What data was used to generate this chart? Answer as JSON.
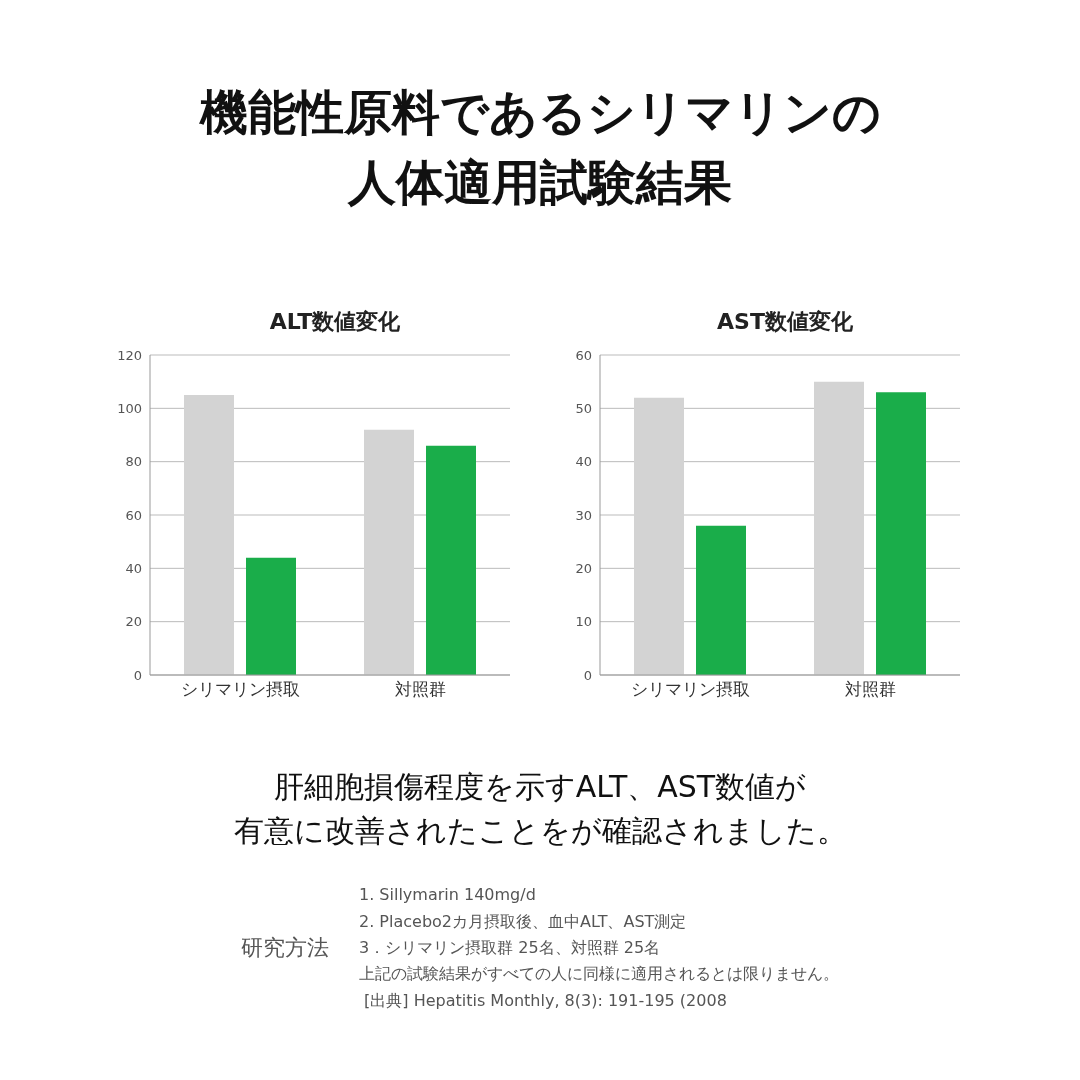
{
  "chart_data": [
    {
      "type": "other",
      "title": "機能性原料であるシリマリンの人体適用試験結果"
    },
    {
      "type": "bar",
      "title": "ALT数値変化",
      "categories": [
        "シリマリン摂取",
        "対照群"
      ],
      "series": [
        {
          "color": "#d3d3d3",
          "values": [
            105,
            92
          ]
        },
        {
          "color": "#1aad4a",
          "values": [
            44,
            86
          ]
        }
      ],
      "ylim": [
        0,
        120
      ],
      "yticks": [
        0,
        20,
        40,
        60,
        80,
        100,
        120
      ],
      "grid": "y",
      "legend": false
    },
    {
      "type": "bar",
      "title": "AST数値変化",
      "categories": [
        "シリマリン摂取",
        "対照群"
      ],
      "series": [
        {
          "color": "#d3d3d3",
          "values": [
            52,
            55
          ]
        },
        {
          "color": "#1aad4a",
          "values": [
            28,
            53
          ]
        }
      ],
      "ylim": [
        0,
        60
      ],
      "yticks": [
        0,
        10,
        20,
        30,
        40,
        50,
        60
      ],
      "grid": "y",
      "legend": false
    },
    {
      "type": "other",
      "title": "肝細胞損傷程度を示すALT、AST数値が",
      "subtitle": "有意に改善されたことをが確認されました。",
      "annotations": [
        "研究方法",
        "1. Sillymarin 140mg/d",
        "2. Placebo2カ月摂取後、血中ALT、AST測定",
        "3．シリマリン摂取群 25名、対照群 25名",
        "上記の試験結果がすべての人に同様に適用されるとは限りません。",
        " [出典] Hepatitis Monthly, 8(3): 191-195 (2008"
      ]
    }
  ]
}
